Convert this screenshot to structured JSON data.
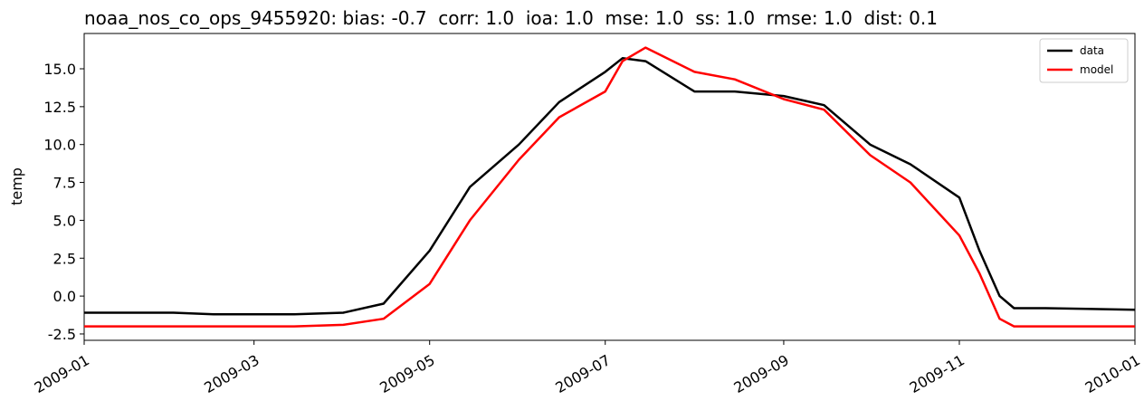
{
  "chart_data": {
    "type": "line",
    "title": "noaa_nos_co_ops_9455920: bias: -0.7  corr: 1.0  ioa: 1.0  mse: 1.0  ss: 1.0  rmse: 1.0  dist: 0.1",
    "y_label": "temp",
    "x": [
      "2009-01-01",
      "2009-01-15",
      "2009-02-01",
      "2009-02-15",
      "2009-03-01",
      "2009-03-15",
      "2009-04-01",
      "2009-04-15",
      "2009-05-01",
      "2009-05-15",
      "2009-06-01",
      "2009-06-15",
      "2009-07-01",
      "2009-07-07",
      "2009-07-15",
      "2009-08-01",
      "2009-08-15",
      "2009-09-01",
      "2009-09-15",
      "2009-10-01",
      "2009-10-15",
      "2009-11-01",
      "2009-11-08",
      "2009-11-15",
      "2009-11-20",
      "2009-12-01",
      "2009-12-15",
      "2010-01-01"
    ],
    "series": [
      {
        "name": "data",
        "color": "#000000",
        "values": [
          -1.1,
          -1.1,
          -1.1,
          -1.2,
          -1.2,
          -1.2,
          -1.1,
          -0.5,
          3.0,
          7.2,
          10.0,
          12.8,
          14.8,
          15.7,
          15.5,
          13.5,
          13.5,
          13.2,
          12.6,
          10.0,
          8.7,
          6.5,
          3.0,
          0.0,
          -0.8,
          -0.8,
          -0.85,
          -0.9
        ]
      },
      {
        "name": "model",
        "color": "#ff0000",
        "values": [
          -2.0,
          -2.0,
          -2.0,
          -2.0,
          -2.0,
          -2.0,
          -1.9,
          -1.5,
          0.8,
          5.0,
          9.0,
          11.8,
          13.5,
          15.5,
          16.4,
          14.8,
          14.3,
          13.0,
          12.3,
          9.3,
          7.5,
          4.0,
          1.5,
          -1.5,
          -2.0,
          -2.0,
          -2.0,
          -2.0
        ]
      }
    ],
    "xlim": [
      "2009-01-01",
      "2010-01-01"
    ],
    "xticks": [
      {
        "value": "2009-01-01",
        "label": "2009-01"
      },
      {
        "value": "2009-03-01",
        "label": "2009-03"
      },
      {
        "value": "2009-05-01",
        "label": "2009-05"
      },
      {
        "value": "2009-07-01",
        "label": "2009-07"
      },
      {
        "value": "2009-09-01",
        "label": "2009-09"
      },
      {
        "value": "2009-11-01",
        "label": "2009-11"
      },
      {
        "value": "2010-01-01",
        "label": "2010-01"
      }
    ],
    "ylim": [
      -2.92,
      17.33
    ],
    "yticks": [
      -2.5,
      {
        "value": 0,
        "label": "0.0"
      },
      2.5,
      {
        "value": 5,
        "label": "5.0"
      },
      7.5,
      {
        "value": 10,
        "label": "10.0"
      },
      12.5,
      {
        "value": 15,
        "label": "15.0"
      }
    ],
    "legend": "upper right"
  }
}
